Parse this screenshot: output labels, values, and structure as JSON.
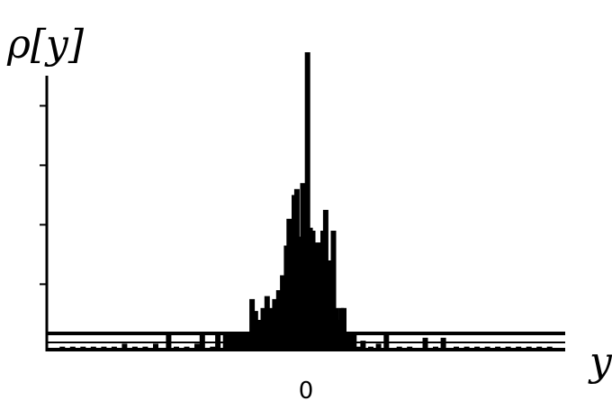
{
  "chart_data": {
    "type": "bar",
    "title": "",
    "ylabel": "ρ[y]",
    "xlabel": "y",
    "x_tick_labels": [
      "0"
    ],
    "xlim": [
      -1,
      1
    ],
    "ylim": [
      0,
      1
    ],
    "grid": false,
    "legend": "none",
    "series": [
      {
        "values": [
          [
            -0.94,
            0.01
          ],
          [
            -0.9,
            0.01
          ],
          [
            -0.86,
            0.01
          ],
          [
            -0.82,
            0.01
          ],
          [
            -0.78,
            0.01
          ],
          [
            -0.74,
            0.01
          ],
          [
            -0.7,
            0.02
          ],
          [
            -0.66,
            0.01
          ],
          [
            -0.62,
            0.01
          ],
          [
            -0.58,
            0.02
          ],
          [
            -0.53,
            0.05
          ],
          [
            -0.5,
            0.01
          ],
          [
            -0.46,
            0.01
          ],
          [
            -0.42,
            0.02
          ],
          [
            -0.4,
            0.05
          ],
          [
            -0.36,
            0.01
          ],
          [
            -0.34,
            0.05
          ],
          [
            -0.31,
            0.05
          ],
          [
            -0.29,
            0.05
          ],
          [
            -0.27,
            0.05
          ],
          [
            -0.25,
            0.05
          ],
          [
            -0.23,
            0.05
          ],
          [
            -0.21,
            0.05
          ],
          [
            -0.19,
            0.05
          ],
          [
            -0.17,
            0.05
          ],
          [
            -0.15,
            0.05
          ],
          [
            -0.13,
            0.07
          ],
          [
            -0.11,
            0.05
          ],
          [
            -0.09,
            0.04
          ],
          [
            -0.07,
            0.03
          ],
          [
            -0.05,
            0.05
          ],
          [
            -0.03,
            0.05
          ],
          [
            -0.01,
            0.04
          ],
          [
            -0.208,
            0.17
          ],
          [
            -0.195,
            0.13
          ],
          [
            -0.18,
            0.1
          ],
          [
            -0.165,
            0.14
          ],
          [
            -0.15,
            0.18
          ],
          [
            -0.135,
            0.14
          ],
          [
            -0.12,
            0.17
          ],
          [
            -0.105,
            0.2
          ],
          [
            -0.09,
            0.25
          ],
          [
            -0.075,
            0.35
          ],
          [
            -0.065,
            0.44
          ],
          [
            -0.055,
            0.3
          ],
          [
            -0.045,
            0.52
          ],
          [
            -0.035,
            0.54
          ],
          [
            -0.025,
            0.38
          ],
          [
            -0.012,
            0.56
          ],
          [
            -0.003,
            0.46
          ],
          [
            0.006,
            1.0
          ],
          [
            0.016,
            0.41
          ],
          [
            0.026,
            0.4
          ],
          [
            0.036,
            0.36
          ],
          [
            0.046,
            0.36
          ],
          [
            0.056,
            0.36
          ],
          [
            0.066,
            0.4
          ],
          [
            0.076,
            0.47
          ],
          [
            0.086,
            0.3
          ],
          [
            0.096,
            0.26
          ],
          [
            0.106,
            0.4
          ],
          [
            0.116,
            0.14
          ],
          [
            0.126,
            0.1
          ],
          [
            0.136,
            0.14
          ],
          [
            0.146,
            0.14
          ],
          [
            0.156,
            0.06
          ],
          [
            0.168,
            0.06
          ],
          [
            0.185,
            0.06
          ],
          [
            0.2,
            0.01
          ],
          [
            0.22,
            0.03
          ],
          [
            0.25,
            0.01
          ],
          [
            0.28,
            0.02
          ],
          [
            0.31,
            0.06
          ],
          [
            0.36,
            0.01
          ],
          [
            0.4,
            0.01
          ],
          [
            0.46,
            0.04
          ],
          [
            0.5,
            0.01
          ],
          [
            0.53,
            0.04
          ],
          [
            0.58,
            0.01
          ],
          [
            0.62,
            0.01
          ],
          [
            0.66,
            0.01
          ],
          [
            0.7,
            0.01
          ],
          [
            0.74,
            0.01
          ],
          [
            0.78,
            0.01
          ],
          [
            0.82,
            0.01
          ],
          [
            0.86,
            0.01
          ],
          [
            0.9,
            0.01
          ],
          [
            0.94,
            0.01
          ]
        ]
      }
    ],
    "colors": {
      "bars": "#000000",
      "axes": "#000000",
      "background": "#ffffff"
    }
  }
}
